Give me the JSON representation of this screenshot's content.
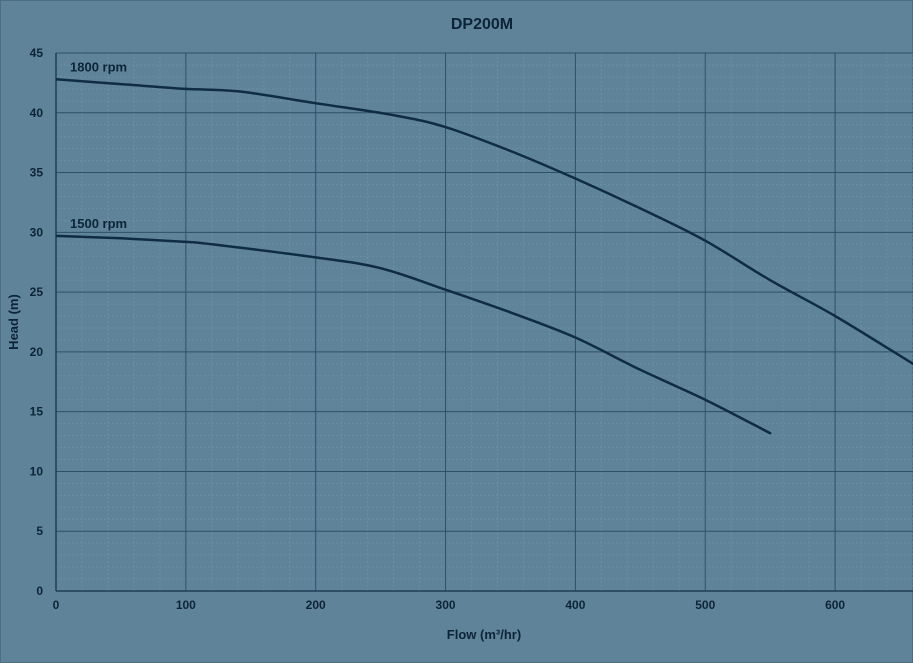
{
  "chart_data": {
    "type": "line",
    "title": "DP200M",
    "xlabel": "Flow (m³/hr)",
    "ylabel": "Head (m)",
    "xlim": [
      0,
      660
    ],
    "ylim": [
      0,
      45
    ],
    "x_ticks": [
      0,
      100,
      200,
      300,
      400,
      500,
      600
    ],
    "y_ticks": [
      0,
      5,
      10,
      15,
      20,
      25,
      30,
      35,
      40,
      45
    ],
    "grid": true,
    "series": [
      {
        "name": "1800 rpm",
        "x": [
          0,
          50,
          100,
          140,
          200,
          260,
          300,
          350,
          400,
          450,
          500,
          550,
          600,
          660
        ],
        "y": [
          42.8,
          42.4,
          42.0,
          41.8,
          40.8,
          39.8,
          38.8,
          36.8,
          34.5,
          32.0,
          29.3,
          26.0,
          23.0,
          19.0
        ]
      },
      {
        "name": "1500 rpm",
        "x": [
          0,
          50,
          100,
          120,
          200,
          250,
          300,
          350,
          400,
          450,
          500,
          550
        ],
        "y": [
          29.7,
          29.5,
          29.2,
          29.0,
          27.9,
          27.0,
          25.2,
          23.3,
          21.2,
          18.5,
          16.0,
          13.2
        ]
      }
    ]
  }
}
